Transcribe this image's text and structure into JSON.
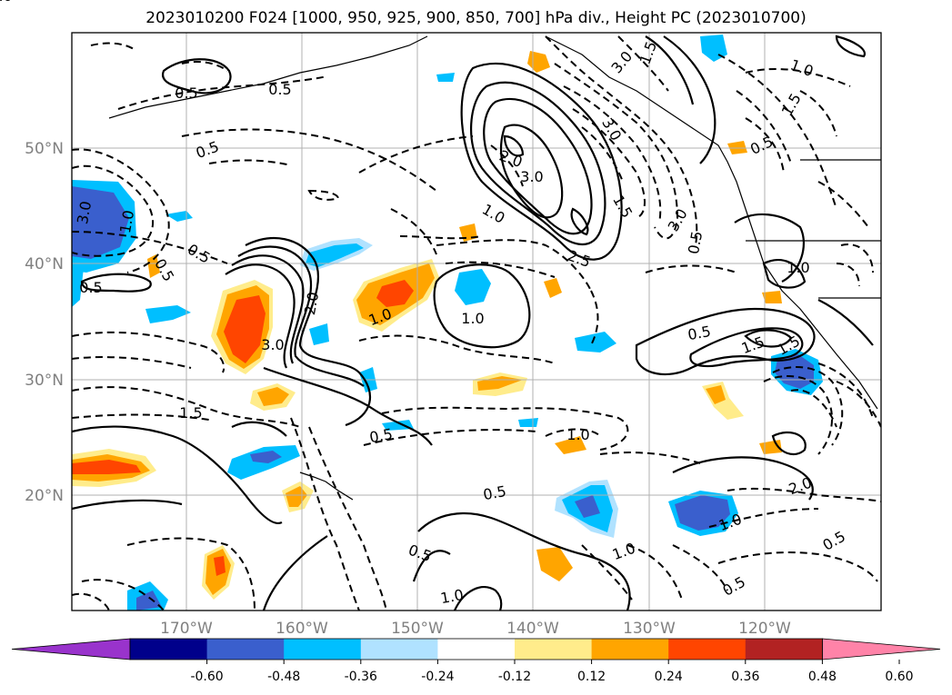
{
  "title": "2023010200 F024 [1000, 950, 925, 900, 850, 700] hPa div., Height PC (2023010700)",
  "lat_labels": [
    "50°N",
    "40°N",
    "30°N",
    "20°N"
  ],
  "lon_labels": [
    "170°W",
    "160°W",
    "150°W",
    "140°W",
    "130°W",
    "120°W"
  ],
  "colorbar": {
    "ticks": [
      "-0.60",
      "-0.48",
      "-0.36",
      "-0.24",
      "-0.12",
      "0.12",
      "0.24",
      "0.36",
      "0.48",
      "0.60"
    ],
    "colors": [
      "#9933cc",
      "#00008b",
      "#3a5fcd",
      "#00bfff",
      "#b0e2ff",
      "#ffffff",
      "#ffec8b",
      "#ffa500",
      "#ff4500",
      "#b22222",
      "#ff83a8"
    ]
  },
  "contour_labels": [
    "0.5",
    "0.5",
    "0.5",
    "0.5",
    "0.5",
    "0.5",
    "0.5",
    "0.5",
    "0.5",
    "0.5",
    "0.5",
    "0.5",
    "0.5",
    "0.5",
    "1.0",
    "1.0",
    "1.0",
    "1.0",
    "1.0",
    "1.0",
    "1.0",
    "1.0",
    "1.0",
    "1.0",
    "1.0",
    "1.5",
    "1.5",
    "1.5",
    "1.5",
    "1.5",
    "2.0",
    "2.0",
    "2.0",
    "3.0",
    "3.0",
    "3.0",
    "3.0",
    "3.0",
    "3.0",
    "1.5",
    "2.5"
  ]
}
